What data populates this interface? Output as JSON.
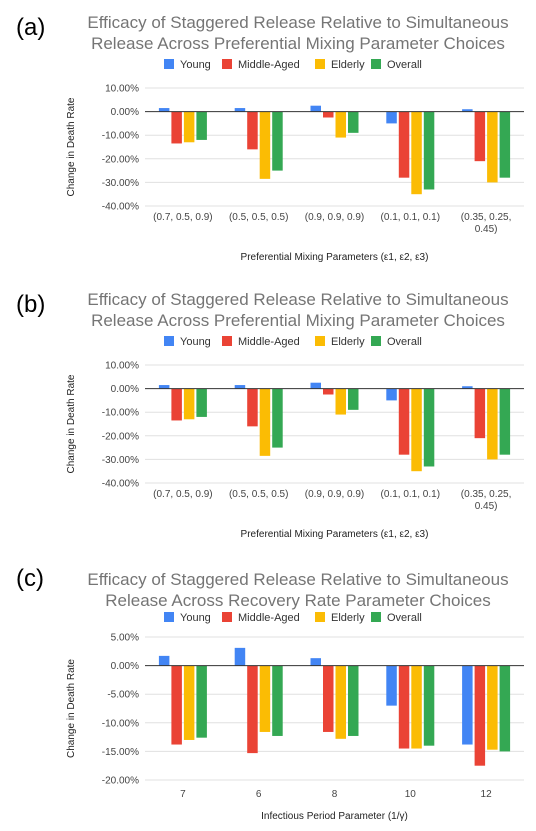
{
  "panels": [
    {
      "label": "(a)"
    },
    {
      "label": "(b)"
    },
    {
      "label": "(c)"
    }
  ],
  "colors": {
    "young": "#4285f4",
    "middle_aged": "#ea4335",
    "elderly": "#fbbc04",
    "overall": "#34a853",
    "title": "#757575",
    "grid": "#e0e0e0",
    "axis": "#333333"
  },
  "chart_data": [
    {
      "type": "bar",
      "title": [
        "Efficacy of Staggered Release Relative to Simultaneous",
        "Release Across Preferential Mixing Parameter Choices"
      ],
      "xlabel": "Preferential Mixing Parameters (ε1, ε2, ε3)",
      "ylabel": "Change in Death Rate",
      "legend_position": "top",
      "ylim": [
        -40,
        10
      ],
      "yticks": [
        10,
        0,
        -10,
        -20,
        -30,
        -40
      ],
      "ytick_labels": [
        "10.00%",
        "0.00%",
        "-10.00%",
        "-20.00%",
        "-30.00%",
        "-40.00%"
      ],
      "categories": [
        [
          "(0.7, 0.5, 0.9)"
        ],
        [
          "(0.5, 0.5, 0.5)"
        ],
        [
          "(0.9, 0.9, 0.9)"
        ],
        [
          "(0.1, 0.1, 0.1)"
        ],
        [
          "(0.35, 0.25,",
          "0.45)"
        ]
      ],
      "series": [
        {
          "name": "Young",
          "values": [
            1.5,
            1.5,
            2.5,
            -5.0,
            1.0
          ]
        },
        {
          "name": "Middle-Aged",
          "values": [
            -13.5,
            -16.0,
            -2.5,
            -28.0,
            -21.0
          ]
        },
        {
          "name": "Elderly",
          "values": [
            -13.0,
            -28.5,
            -11.0,
            -35.0,
            -30.0
          ]
        },
        {
          "name": "Overall",
          "values": [
            -12.0,
            -25.0,
            -9.0,
            -33.0,
            -28.0
          ]
        }
      ]
    },
    {
      "type": "bar",
      "title": [
        "Efficacy of Staggered Release Relative to Simultaneous",
        "Release Across Preferential Mixing Parameter Choices"
      ],
      "xlabel": "Preferential Mixing Parameters (ε1, ε2, ε3)",
      "ylabel": "Change in Death Rate",
      "legend_position": "top",
      "ylim": [
        -40,
        10
      ],
      "yticks": [
        10,
        0,
        -10,
        -20,
        -30,
        -40
      ],
      "ytick_labels": [
        "10.00%",
        "0.00%",
        "-10.00%",
        "-20.00%",
        "-30.00%",
        "-40.00%"
      ],
      "categories": [
        [
          "(0.7, 0.5, 0.9)"
        ],
        [
          "(0.5, 0.5, 0.5)"
        ],
        [
          "(0.9, 0.9, 0.9)"
        ],
        [
          "(0.1, 0.1, 0.1)"
        ],
        [
          "(0.35, 0.25,",
          "0.45)"
        ]
      ],
      "series": [
        {
          "name": "Young",
          "values": [
            1.5,
            1.5,
            2.5,
            -5.0,
            1.0
          ]
        },
        {
          "name": "Middle-Aged",
          "values": [
            -13.5,
            -16.0,
            -2.5,
            -28.0,
            -21.0
          ]
        },
        {
          "name": "Elderly",
          "values": [
            -13.0,
            -28.5,
            -11.0,
            -35.0,
            -30.0
          ]
        },
        {
          "name": "Overall",
          "values": [
            -12.0,
            -25.0,
            -9.0,
            -33.0,
            -28.0
          ]
        }
      ]
    },
    {
      "type": "bar",
      "title": [
        "Efficacy of Staggered Release Relative to Simultaneous",
        "Release Across Recovery Rate Parameter Choices"
      ],
      "xlabel": "Infectious Period Parameter (1/γ)",
      "ylabel": "Change in Death Rate",
      "legend_position": "top",
      "ylim": [
        -20,
        5
      ],
      "yticks": [
        5,
        0,
        -5,
        -10,
        -15,
        -20
      ],
      "ytick_labels": [
        "5.00%",
        "0.00%",
        "-5.00%",
        "-10.00%",
        "-15.00%",
        "-20.00%"
      ],
      "categories": [
        [
          "7"
        ],
        [
          "6"
        ],
        [
          "8"
        ],
        [
          "10"
        ],
        [
          "12"
        ]
      ],
      "series": [
        {
          "name": "Young",
          "values": [
            1.7,
            3.1,
            1.3,
            -7.0,
            -13.8
          ]
        },
        {
          "name": "Middle-Aged",
          "values": [
            -13.8,
            -15.3,
            -11.6,
            -14.5,
            -17.5
          ]
        },
        {
          "name": "Elderly",
          "values": [
            -13.0,
            -11.6,
            -12.8,
            -14.5,
            -14.7
          ]
        },
        {
          "name": "Overall",
          "values": [
            -12.6,
            -12.3,
            -12.3,
            -14.0,
            -15.0
          ]
        }
      ]
    }
  ]
}
